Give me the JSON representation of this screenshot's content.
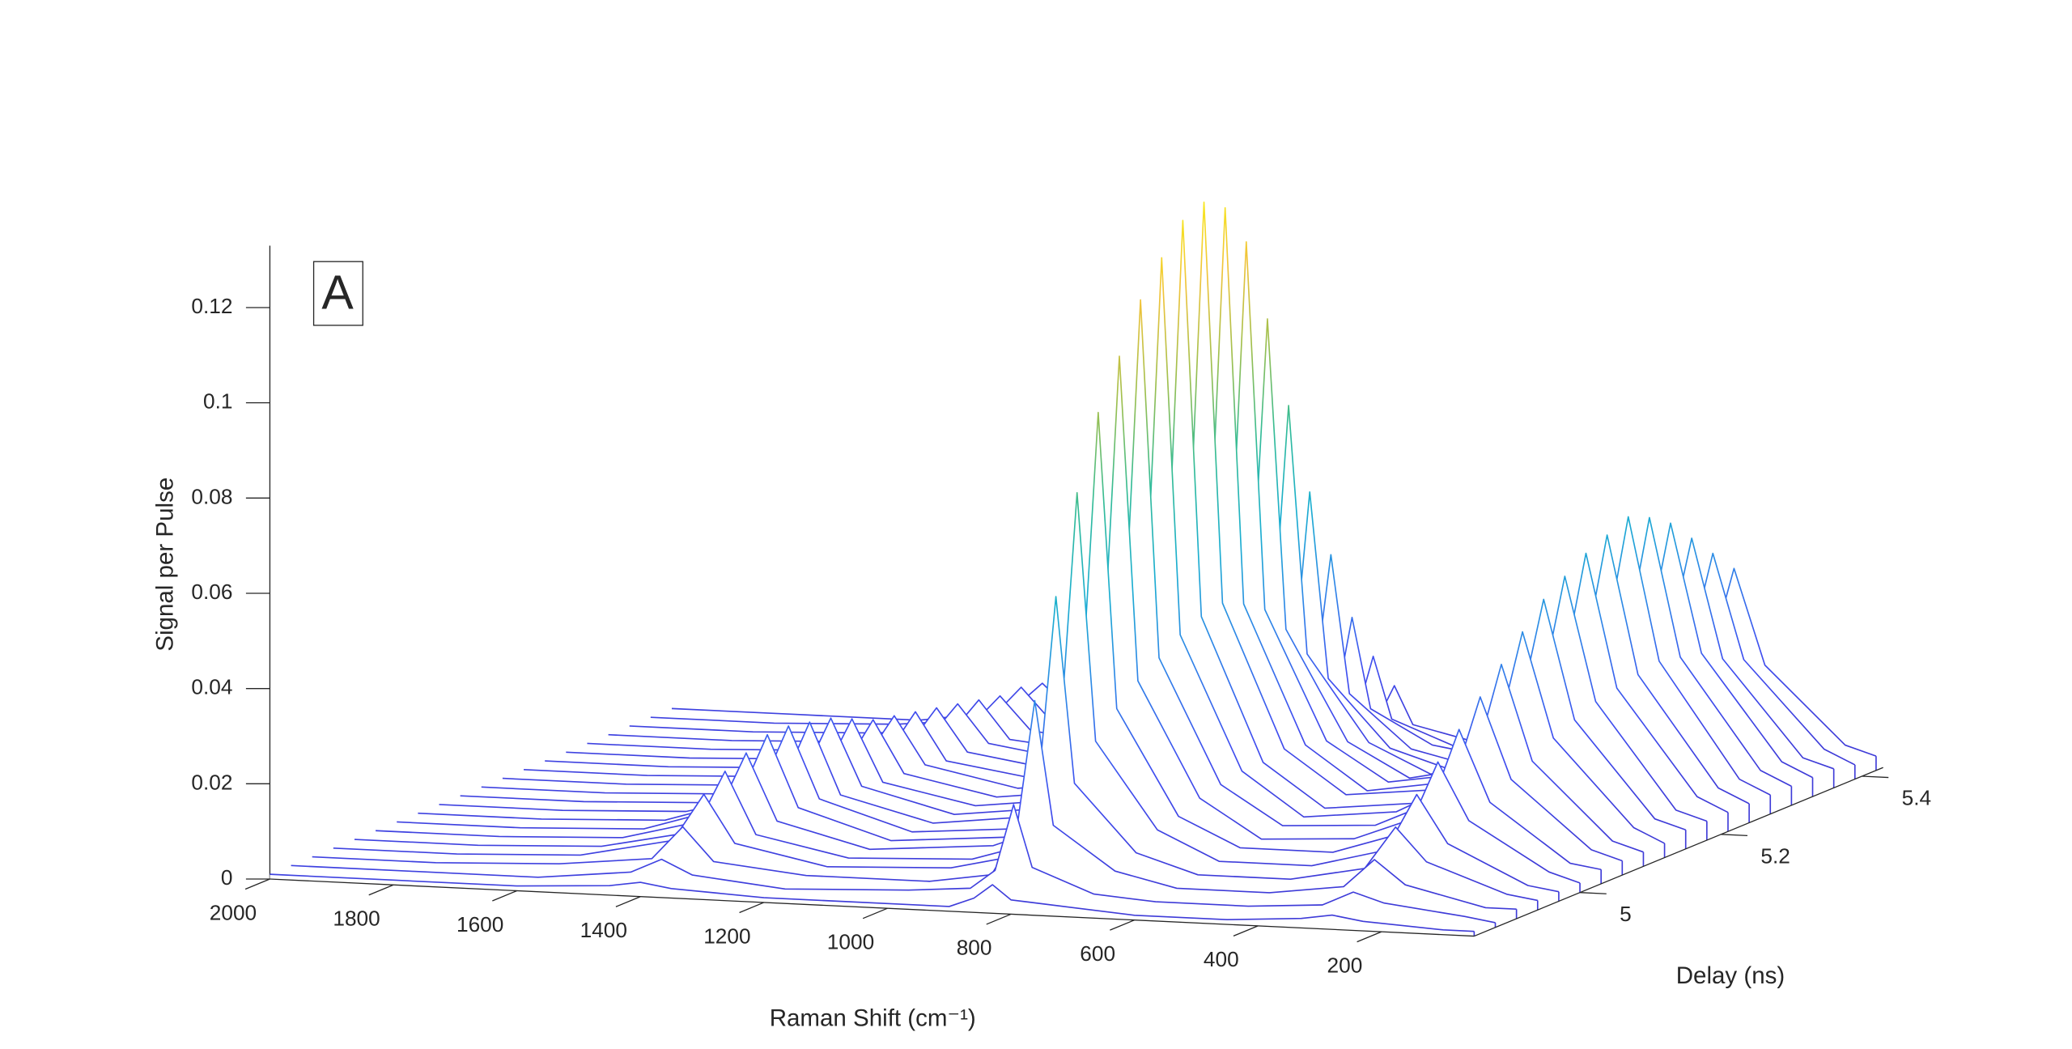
{
  "chart_data": {
    "type": "waterfall",
    "panel_label": "A",
    "xlabel": "Raman Shift (cm⁻¹)",
    "ylabel": "Delay (ns)",
    "zlabel": "Signal per Pulse",
    "x": [
      2000,
      1800,
      1600,
      1450,
      1400,
      1350,
      1200,
      1000,
      900,
      860,
      830,
      800,
      700,
      600,
      450,
      330,
      280,
      230,
      100,
      50
    ],
    "xlim": [
      50,
      2000
    ],
    "xticks": [
      2000,
      1800,
      1600,
      1400,
      1200,
      1000,
      800,
      600,
      400,
      200
    ],
    "ylim": [
      4.85,
      5.43
    ],
    "yticks": [
      5,
      5.2,
      5.4
    ],
    "zlim": [
      0,
      0.133
    ],
    "zticks": [
      0,
      0.02,
      0.04,
      0.06,
      0.08,
      0.1,
      0.12
    ],
    "colormap": [
      "#3e3bd8",
      "#3f4ef0",
      "#2f86e8",
      "#1aaed0",
      "#33bc96",
      "#9cbf4e",
      "#f0c33a",
      "#f9ee1a"
    ],
    "series": [
      {
        "delay": 4.85,
        "values": [
          0.001,
          0.001,
          0.001,
          0.002,
          0.003,
          0.002,
          0.001,
          0.001,
          0.001,
          0.003,
          0.006,
          0.003,
          0.002,
          0.001,
          0.001,
          0.002,
          0.003,
          0.002,
          0.001,
          0.001
        ]
      },
      {
        "delay": 4.88,
        "values": [
          0.001,
          0.001,
          0.001,
          0.003,
          0.006,
          0.003,
          0.001,
          0.002,
          0.003,
          0.007,
          0.021,
          0.008,
          0.003,
          0.002,
          0.002,
          0.003,
          0.006,
          0.004,
          0.002,
          0.001
        ]
      },
      {
        "delay": 4.91,
        "values": [
          0.001,
          0.001,
          0.002,
          0.004,
          0.011,
          0.004,
          0.002,
          0.002,
          0.004,
          0.013,
          0.041,
          0.015,
          0.006,
          0.003,
          0.003,
          0.005,
          0.011,
          0.006,
          0.002,
          0.002
        ]
      },
      {
        "delay": 4.94,
        "values": [
          0.001,
          0.001,
          0.002,
          0.006,
          0.016,
          0.006,
          0.002,
          0.003,
          0.006,
          0.019,
          0.061,
          0.022,
          0.008,
          0.004,
          0.004,
          0.007,
          0.016,
          0.009,
          0.003,
          0.002
        ]
      },
      {
        "delay": 4.97,
        "values": [
          0.001,
          0.001,
          0.002,
          0.006,
          0.019,
          0.006,
          0.002,
          0.003,
          0.007,
          0.025,
          0.081,
          0.029,
          0.011,
          0.005,
          0.005,
          0.009,
          0.021,
          0.011,
          0.003,
          0.002
        ]
      },
      {
        "delay": 5,
        "values": [
          0.001,
          0.001,
          0.002,
          0.007,
          0.021,
          0.007,
          0.002,
          0.004,
          0.009,
          0.03,
          0.096,
          0.034,
          0.012,
          0.006,
          0.006,
          0.011,
          0.026,
          0.014,
          0.004,
          0.002
        ]
      },
      {
        "delay": 5.03,
        "values": [
          0.001,
          0.001,
          0.002,
          0.008,
          0.023,
          0.008,
          0.002,
          0.004,
          0.009,
          0.033,
          0.106,
          0.038,
          0.014,
          0.006,
          0.007,
          0.013,
          0.031,
          0.016,
          0.004,
          0.003
        ]
      },
      {
        "delay": 5.06,
        "values": [
          0.001,
          0.001,
          0.002,
          0.008,
          0.023,
          0.008,
          0.002,
          0.004,
          0.01,
          0.036,
          0.116,
          0.041,
          0.015,
          0.007,
          0.008,
          0.015,
          0.036,
          0.019,
          0.005,
          0.003
        ]
      },
      {
        "delay": 5.09,
        "values": [
          0.001,
          0.001,
          0.002,
          0.007,
          0.022,
          0.007,
          0.002,
          0.005,
          0.011,
          0.038,
          0.123,
          0.044,
          0.016,
          0.007,
          0.009,
          0.017,
          0.041,
          0.021,
          0.005,
          0.003
        ]
      },
      {
        "delay": 5.12,
        "values": [
          0.001,
          0.001,
          0.002,
          0.007,
          0.021,
          0.007,
          0.002,
          0.005,
          0.011,
          0.039,
          0.129,
          0.046,
          0.016,
          0.007,
          0.009,
          0.019,
          0.046,
          0.024,
          0.006,
          0.003
        ]
      },
      {
        "delay": 5.15,
        "values": [
          0.001,
          0.001,
          0.002,
          0.006,
          0.019,
          0.006,
          0.002,
          0.005,
          0.011,
          0.04,
          0.131,
          0.047,
          0.017,
          0.008,
          0.01,
          0.021,
          0.051,
          0.026,
          0.006,
          0.004
        ]
      },
      {
        "delay": 5.18,
        "values": [
          0.001,
          0.001,
          0.002,
          0.006,
          0.017,
          0.006,
          0.002,
          0.005,
          0.011,
          0.039,
          0.128,
          0.045,
          0.016,
          0.007,
          0.01,
          0.022,
          0.054,
          0.028,
          0.006,
          0.004
        ]
      },
      {
        "delay": 5.21,
        "values": [
          0.001,
          0.001,
          0.002,
          0.006,
          0.016,
          0.006,
          0.002,
          0.005,
          0.01,
          0.036,
          0.119,
          0.042,
          0.015,
          0.007,
          0.01,
          0.023,
          0.057,
          0.029,
          0.007,
          0.004
        ]
      },
      {
        "delay": 5.24,
        "values": [
          0.001,
          0.001,
          0.002,
          0.005,
          0.015,
          0.005,
          0.002,
          0.004,
          0.009,
          0.031,
          0.101,
          0.036,
          0.013,
          0.006,
          0.01,
          0.024,
          0.059,
          0.03,
          0.007,
          0.004
        ]
      },
      {
        "delay": 5.27,
        "values": [
          0.001,
          0.001,
          0.002,
          0.005,
          0.014,
          0.005,
          0.002,
          0.003,
          0.007,
          0.025,
          0.081,
          0.029,
          0.011,
          0.005,
          0.009,
          0.025,
          0.061,
          0.031,
          0.007,
          0.004
        ]
      },
      {
        "delay": 5.3,
        "values": [
          0.001,
          0.001,
          0.002,
          0.005,
          0.013,
          0.005,
          0.002,
          0.003,
          0.006,
          0.019,
          0.061,
          0.022,
          0.008,
          0.004,
          0.008,
          0.024,
          0.059,
          0.03,
          0.007,
          0.004
        ]
      },
      {
        "delay": 5.33,
        "values": [
          0.001,
          0.001,
          0.002,
          0.004,
          0.012,
          0.004,
          0.002,
          0.002,
          0.005,
          0.015,
          0.046,
          0.017,
          0.006,
          0.003,
          0.008,
          0.023,
          0.056,
          0.029,
          0.007,
          0.004
        ]
      },
      {
        "delay": 5.36,
        "values": [
          0.001,
          0.001,
          0.002,
          0.004,
          0.011,
          0.004,
          0.002,
          0.002,
          0.003,
          0.01,
          0.031,
          0.012,
          0.005,
          0.003,
          0.007,
          0.021,
          0.051,
          0.026,
          0.006,
          0.004
        ]
      },
      {
        "delay": 5.39,
        "values": [
          0.001,
          0.001,
          0.002,
          0.004,
          0.011,
          0.004,
          0.002,
          0.002,
          0.003,
          0.007,
          0.021,
          0.008,
          0.003,
          0.002,
          0.006,
          0.019,
          0.046,
          0.024,
          0.006,
          0.003
        ]
      },
      {
        "delay": 5.42,
        "values": [
          0.001,
          0.001,
          0.001,
          0.004,
          0.01,
          0.004,
          0.001,
          0.001,
          0.002,
          0.005,
          0.013,
          0.005,
          0.002,
          0.002,
          0.005,
          0.017,
          0.041,
          0.021,
          0.005,
          0.003
        ]
      }
    ]
  }
}
